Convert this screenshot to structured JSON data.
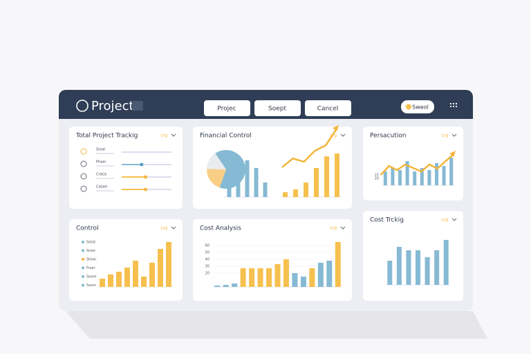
{
  "header": {
    "title": "Project",
    "buttons": [
      "Projec",
      "Soept",
      "Cancel"
    ],
    "toggle": "Sweol"
  },
  "panels": [
    {
      "title": "Total Project Trackig",
      "dropdown": "Lrg",
      "rows": [
        {
          "label": "Sreat",
          "progress": 0
        },
        {
          "label": "Phaer",
          "progress": 40
        },
        {
          "label": "Crdcls",
          "progress": 48
        },
        {
          "label": "Catael",
          "progress": 48
        }
      ]
    },
    {
      "title": "Financial Control",
      "dropdown": "Lrg",
      "pie": {
        "values": [
          65,
          20,
          15
        ],
        "colors": [
          "#86b9d3",
          "#f9cf86",
          "#e9ecef"
        ]
      },
      "bars": {
        "values": [
          10,
          20,
          38,
          30,
          15
        ],
        "color": "#86b9d3",
        "ylim": [
          0,
          50
        ]
      },
      "bars2": {
        "values": [
          5,
          8,
          15,
          30,
          42,
          45
        ],
        "color": "#f6c04e",
        "ylim": [
          0,
          50
        ]
      },
      "line": {
        "values": [
          10,
          18,
          15,
          25,
          30,
          45
        ],
        "color": "#f3b53b",
        "ylim": [
          0,
          50
        ]
      }
    },
    {
      "title": "Persacution",
      "dropdown": "Lrg",
      "yticks": [
        15,
        10
      ],
      "bars": {
        "values": [
          20,
          25,
          22,
          35,
          20,
          25,
          22,
          32,
          28,
          40
        ],
        "color": "#86b9d3",
        "ylim": [
          0,
          50
        ]
      },
      "line": {
        "values": [
          15,
          28,
          22,
          30,
          25,
          20,
          30,
          24,
          35,
          45
        ],
        "color": "#f3b53b",
        "ylim": [
          0,
          50
        ]
      }
    },
    {
      "title": "Control",
      "dropdown": "Lrg",
      "legend": [
        "Sotat",
        "Sreer",
        "Stewr",
        "Fraer",
        "Soore",
        "Sasor"
      ],
      "bars": {
        "values": [
          12,
          18,
          22,
          28,
          38,
          15,
          35,
          55,
          65
        ],
        "color": "#f6c04e",
        "ylim": [
          0,
          70
        ]
      }
    },
    {
      "title": "Cost Analysis",
      "dropdown": "Lrg",
      "yticks": [
        60,
        50,
        40,
        30,
        20
      ],
      "bars": {
        "values": [
          2,
          3,
          5,
          27,
          27,
          27,
          27,
          33,
          40,
          20,
          15,
          27,
          35,
          38,
          65
        ],
        "colors": [
          "#86b9d3",
          "#86b9d3",
          "#86b9d3",
          "#f6c04e",
          "#f6c04e",
          "#f6c04e",
          "#f6c04e",
          "#f6c04e",
          "#f6c04e",
          "#86b9d3",
          "#86b9d3",
          "#f6c04e",
          "#86b9d3",
          "#86b9d3",
          "#f6c04e"
        ],
        "ylim": [
          0,
          70
        ]
      }
    },
    {
      "title": "Cost Trckig",
      "dropdown": "Lrg",
      "bars": {
        "values": [
          35,
          55,
          50,
          50,
          40,
          50,
          65
        ],
        "color": "#86b9d3",
        "ylim": [
          0,
          80
        ]
      }
    }
  ]
}
